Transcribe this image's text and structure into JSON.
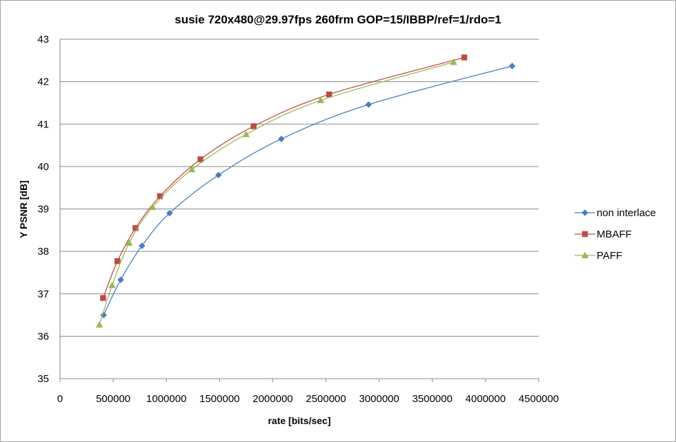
{
  "chart_data": {
    "type": "line",
    "title": "susie 720x480@29.97fps  260frm GOP=15/IBBP/ref=1/rdo=1",
    "xlabel": "rate [bits/sec]",
    "ylabel": "Y PSNR [dB]",
    "xlim": [
      0,
      4500000
    ],
    "ylim": [
      35,
      43
    ],
    "x_ticks": [
      "0",
      "500000",
      "1000000",
      "1500000",
      "2000000",
      "2500000",
      "3000000",
      "3500000",
      "4000000",
      "4500000"
    ],
    "y_ticks": [
      "35",
      "36",
      "37",
      "38",
      "39",
      "40",
      "41",
      "42",
      "43"
    ],
    "grid": "horizontal",
    "legend_position": "right",
    "series": [
      {
        "name": "non interlace",
        "color": "#4a7ebb",
        "marker": "diamond",
        "points": [
          [
            410000,
            36.5
          ],
          [
            570000,
            37.33
          ],
          [
            770000,
            38.13
          ],
          [
            1030000,
            38.9
          ],
          [
            1490000,
            39.8
          ],
          [
            2080000,
            40.65
          ],
          [
            2900000,
            41.46
          ],
          [
            4250000,
            42.37
          ]
        ]
      },
      {
        "name": "MBAFF",
        "color": "#be4b48",
        "marker": "square",
        "points": [
          [
            405000,
            36.9
          ],
          [
            540000,
            37.77
          ],
          [
            710000,
            38.55
          ],
          [
            940000,
            39.3
          ],
          [
            1320000,
            40.17
          ],
          [
            1820000,
            40.95
          ],
          [
            2530000,
            41.7
          ],
          [
            3800000,
            42.57
          ]
        ]
      },
      {
        "name": "PAFF",
        "color": "#98b954",
        "marker": "triangle",
        "points": [
          [
            370000,
            36.27
          ],
          [
            490000,
            37.2
          ],
          [
            650000,
            38.2
          ],
          [
            870000,
            39.04
          ],
          [
            1240000,
            39.93
          ],
          [
            1750000,
            40.76
          ],
          [
            2450000,
            41.56
          ],
          [
            3700000,
            42.46
          ]
        ]
      }
    ]
  }
}
